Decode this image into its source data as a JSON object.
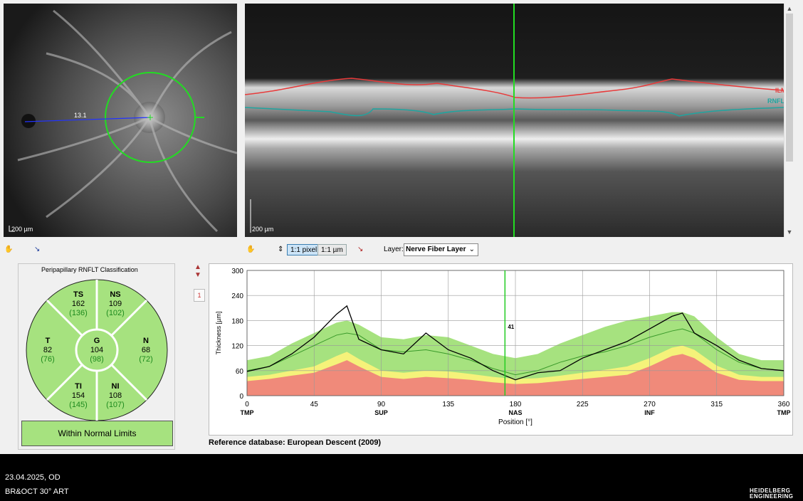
{
  "fundus": {
    "scale_label": "200 µm",
    "distance_label": "13.1"
  },
  "oct": {
    "scale_label": "200 µm",
    "ilm_label": "ILM",
    "rnfl_label": "RNFL"
  },
  "toolbar": {
    "pixel_label": "1:1 pixel",
    "um_label": "1:1 µm",
    "layer_label": "Layer:",
    "layer_value": "Nerve Fiber Layer"
  },
  "classification": {
    "title": "Peripapillary RNFLT Classification",
    "sectors": {
      "TS": {
        "label": "TS",
        "value": "162",
        "ref": "(136)"
      },
      "NS": {
        "label": "NS",
        "value": "109",
        "ref": "(102)"
      },
      "T": {
        "label": "T",
        "value": "82",
        "ref": "(76)"
      },
      "G": {
        "label": "G",
        "value": "104",
        "ref": "(98)"
      },
      "N": {
        "label": "N",
        "value": "68",
        "ref": "(72)"
      },
      "TI": {
        "label": "TI",
        "value": "154",
        "ref": "(145)"
      },
      "NI": {
        "label": "NI",
        "value": "108",
        "ref": "(107)"
      }
    },
    "result": "Within Normal Limits",
    "colors": {
      "normal": "#a6e27f",
      "ref_text": "#1d8a1d"
    }
  },
  "chart_page": "1",
  "reference_db": "Reference database: European Descent (2009)",
  "footer": {
    "date_eye": "23.04.2025, OD",
    "device": "BR&OCT 30° ART",
    "logo_line1": "HEIDELBERG",
    "logo_line2": "ENGINEERING"
  },
  "chart_data": {
    "type": "line",
    "xlabel": "Position [°]",
    "ylabel": "Thickness [µm]",
    "xlim": [
      0,
      360
    ],
    "ylim": [
      0,
      300
    ],
    "x_ticks": [
      0,
      45,
      90,
      135,
      180,
      225,
      270,
      315,
      360
    ],
    "y_ticks": [
      0,
      60,
      120,
      180,
      240,
      300
    ],
    "sector_labels": [
      {
        "x": 0,
        "label": "TMP"
      },
      {
        "x": 90,
        "label": "SUP"
      },
      {
        "x": 180,
        "label": "NAS"
      },
      {
        "x": 270,
        "label": "INF"
      },
      {
        "x": 360,
        "label": "TMP"
      }
    ],
    "cursor": {
      "x": 173,
      "label": "41"
    },
    "x": [
      0,
      15,
      30,
      45,
      60,
      67,
      75,
      90,
      105,
      120,
      135,
      150,
      165,
      180,
      195,
      210,
      225,
      240,
      255,
      270,
      285,
      292,
      300,
      315,
      330,
      345,
      360
    ],
    "series": [
      {
        "name": "red_upper",
        "color": "#f08a7a",
        "values": [
          35,
          40,
          48,
          55,
          75,
          85,
          70,
          45,
          40,
          45,
          42,
          38,
          32,
          28,
          30,
          35,
          40,
          45,
          50,
          70,
          95,
          100,
          90,
          55,
          38,
          35,
          35
        ]
      },
      {
        "name": "yellow_upper",
        "color": "#f5f27a",
        "values": [
          45,
          50,
          60,
          70,
          95,
          105,
          88,
          60,
          55,
          60,
          58,
          52,
          45,
          40,
          42,
          48,
          55,
          62,
          70,
          90,
          115,
          120,
          110,
          72,
          50,
          45,
          45
        ]
      },
      {
        "name": "green_upper",
        "color": "#a6e27f",
        "values": [
          85,
          95,
          125,
          150,
          175,
          180,
          170,
          140,
          135,
          145,
          140,
          120,
          100,
          90,
          100,
          125,
          145,
          165,
          180,
          190,
          200,
          200,
          190,
          140,
          100,
          85,
          85
        ]
      },
      {
        "name": "mean",
        "color": "#3a9a2a",
        "values": [
          60,
          70,
          95,
          120,
          145,
          150,
          145,
          110,
          105,
          110,
          100,
          85,
          65,
          50,
          60,
          80,
          95,
          105,
          120,
          140,
          155,
          160,
          150,
          110,
          80,
          65,
          60
        ]
      },
      {
        "name": "patient",
        "color": "#000000",
        "values": [
          58,
          70,
          100,
          140,
          195,
          215,
          135,
          110,
          100,
          150,
          110,
          90,
          60,
          38,
          55,
          60,
          90,
          110,
          130,
          160,
          190,
          198,
          150,
          120,
          85,
          65,
          60
        ]
      }
    ]
  }
}
